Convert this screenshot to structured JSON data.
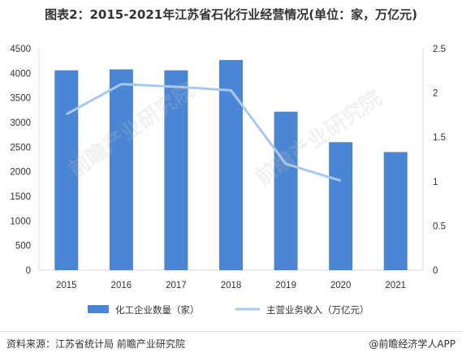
{
  "title": "图表2：2015-2021年江苏省石化行业经营情况(单位：家，万亿元)",
  "footer": {
    "source": "资料来源：江苏省统计局 前瞻产业研究院",
    "brand": "@前瞻经济学人APP"
  },
  "watermark": "前瞻产业研究院",
  "colors": {
    "bar": "#4a86d4",
    "line": "#a9c8ee",
    "axis": "#d9d9d9"
  },
  "chart_data": {
    "type": "bar",
    "categories": [
      "2015",
      "2016",
      "2017",
      "2018",
      "2019",
      "2020",
      "2021"
    ],
    "series": [
      {
        "name": "化工企业数量（家）",
        "type": "bar",
        "axis": "left",
        "values": [
          4060,
          4080,
          4060,
          4270,
          3220,
          2600,
          2400
        ]
      },
      {
        "name": "主营业务收入（万亿元）",
        "type": "line",
        "axis": "right",
        "values": [
          1.76,
          2.1,
          2.07,
          2.03,
          1.2,
          1.01,
          null
        ]
      }
    ],
    "y_left": {
      "min": 0,
      "max": 4500,
      "ticks": [
        0,
        500,
        1000,
        1500,
        2000,
        2500,
        3000,
        3500,
        4000,
        4500
      ]
    },
    "y_right": {
      "min": 0,
      "max": 2.5,
      "ticks": [
        "0",
        "0.5",
        "1",
        "1.5",
        "2",
        "2.5"
      ]
    },
    "legend": "bottom",
    "grid": false
  }
}
